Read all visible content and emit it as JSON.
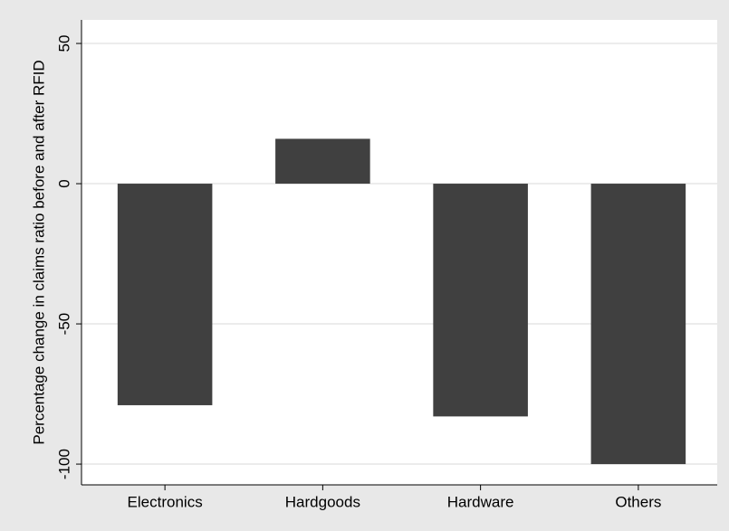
{
  "chart_data": {
    "type": "bar",
    "y_label": "Percentage change in claims ratio before and after RFID",
    "categories": [
      "Electronics",
      "Hardgoods",
      "Hardware",
      "Others"
    ],
    "values": [
      -79,
      16,
      -83,
      -100
    ],
    "color": "#404040",
    "ylim": [
      -107.4,
      58.4
    ],
    "yticks": [
      -100,
      -50,
      0,
      50
    ],
    "grid": true
  }
}
